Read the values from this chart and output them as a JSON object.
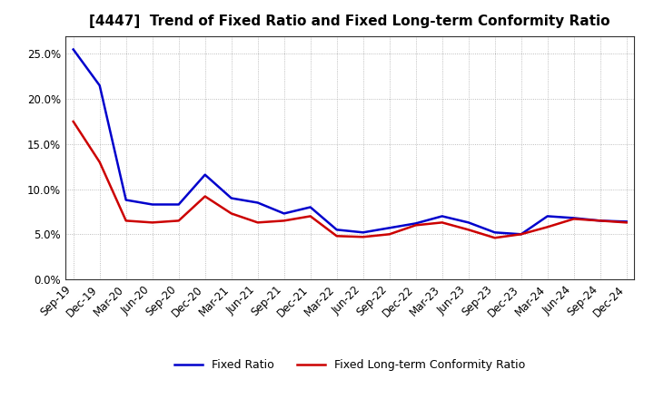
{
  "title": "[4447]  Trend of Fixed Ratio and Fixed Long-term Conformity Ratio",
  "x_labels": [
    "Sep-19",
    "Dec-19",
    "Mar-20",
    "Jun-20",
    "Sep-20",
    "Dec-20",
    "Mar-21",
    "Jun-21",
    "Sep-21",
    "Dec-21",
    "Mar-22",
    "Jun-22",
    "Sep-22",
    "Dec-22",
    "Mar-23",
    "Jun-23",
    "Sep-23",
    "Dec-23",
    "Mar-24",
    "Jun-24",
    "Sep-24",
    "Dec-24"
  ],
  "fixed_ratio": [
    0.255,
    0.215,
    0.088,
    0.083,
    0.083,
    0.116,
    0.09,
    0.085,
    0.073,
    0.08,
    0.055,
    0.052,
    0.057,
    0.062,
    0.07,
    0.063,
    0.052,
    0.05,
    0.07,
    0.068,
    0.065,
    0.064
  ],
  "fixed_lt_ratio": [
    0.175,
    0.13,
    0.065,
    0.063,
    0.065,
    0.092,
    0.073,
    0.063,
    0.065,
    0.07,
    0.048,
    0.047,
    0.05,
    0.06,
    0.063,
    0.055,
    0.046,
    0.05,
    0.058,
    0.067,
    0.065,
    0.063
  ],
  "fixed_ratio_color": "#0000cc",
  "fixed_lt_ratio_color": "#cc0000",
  "background_color": "#ffffff",
  "plot_bg_color": "#ffffff",
  "grid_color": "#aaaaaa",
  "ylim": [
    0.0,
    0.27
  ],
  "yticks": [
    0.0,
    0.05,
    0.1,
    0.15,
    0.2,
    0.25
  ],
  "title_fontsize": 11,
  "legend_fontsize": 9,
  "axis_fontsize": 8.5,
  "line_width": 1.8
}
